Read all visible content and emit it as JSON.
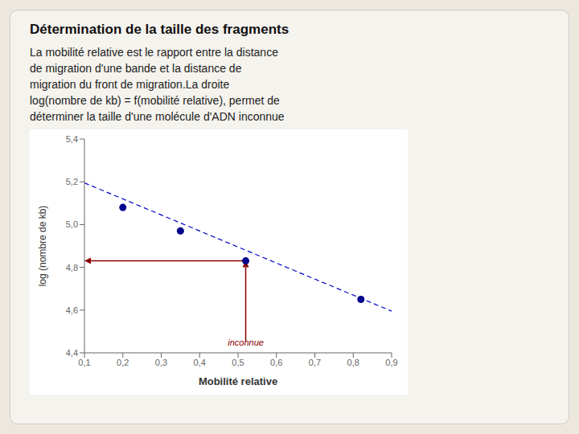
{
  "chart_data": {
    "type": "scatter",
    "title": "Détermination de la taille des fragments",
    "subtitle": [
      "La mobilité relative est le rapport entre la distance",
      "de migration d'une bande et la distance de",
      "migration du front de migration.La droite",
      "log(nombre de kb) = f(mobilité relative), permet de",
      "déterminer la taille d'une molécule d'ADN inconnue"
    ],
    "x_label": "Mobilité relative",
    "y_label": "log (nombre de kb)",
    "xlim": [
      0.1,
      0.9
    ],
    "ylim": [
      4.4,
      5.4
    ],
    "xticks": [
      {
        "value": 0.1,
        "label": "0,1"
      },
      {
        "value": 0.2,
        "label": "0,2"
      },
      {
        "value": 0.3,
        "label": "0,3"
      },
      {
        "value": 0.4,
        "label": "0,4"
      },
      {
        "value": 0.5,
        "label": "0,5"
      },
      {
        "value": 0.6,
        "label": "0,6"
      },
      {
        "value": 0.7,
        "label": "0,7"
      },
      {
        "value": 0.8,
        "label": "0,8"
      },
      {
        "value": 0.9,
        "label": "0,9"
      }
    ],
    "yticks": [
      {
        "value": 4.4,
        "label": "4,4"
      },
      {
        "value": 4.6,
        "label": "4,6"
      },
      {
        "value": 4.8,
        "label": "4,8"
      },
      {
        "value": 5.0,
        "label": "5,0"
      },
      {
        "value": 5.2,
        "label": "5,2"
      },
      {
        "value": 5.4,
        "label": "5,4"
      }
    ],
    "grid": false,
    "series": [
      {
        "type": "line",
        "line_style": "dashed",
        "color": "#0000CD",
        "x": [
          0.1,
          0.9
        ],
        "values": [
          5.195,
          4.595
        ]
      },
      {
        "type": "scatter",
        "marker": "circle",
        "color": "#00008B",
        "x": [
          0.2,
          0.35,
          0.52,
          0.82
        ],
        "values": [
          5.08,
          4.97,
          4.83,
          4.65
        ]
      }
    ],
    "arrows": [
      {
        "x": [
          0.52,
          0.52
        ],
        "y": [
          4.455,
          4.83
        ],
        "color": "#8B0000"
      },
      {
        "x": [
          0.52,
          0.1
        ],
        "y": [
          4.83,
          4.83
        ],
        "color": "#8B0000"
      }
    ],
    "annotations": [
      {
        "text": "inconnue",
        "x": 0.52,
        "y": 4.415,
        "color": "#8B0000"
      }
    ]
  }
}
